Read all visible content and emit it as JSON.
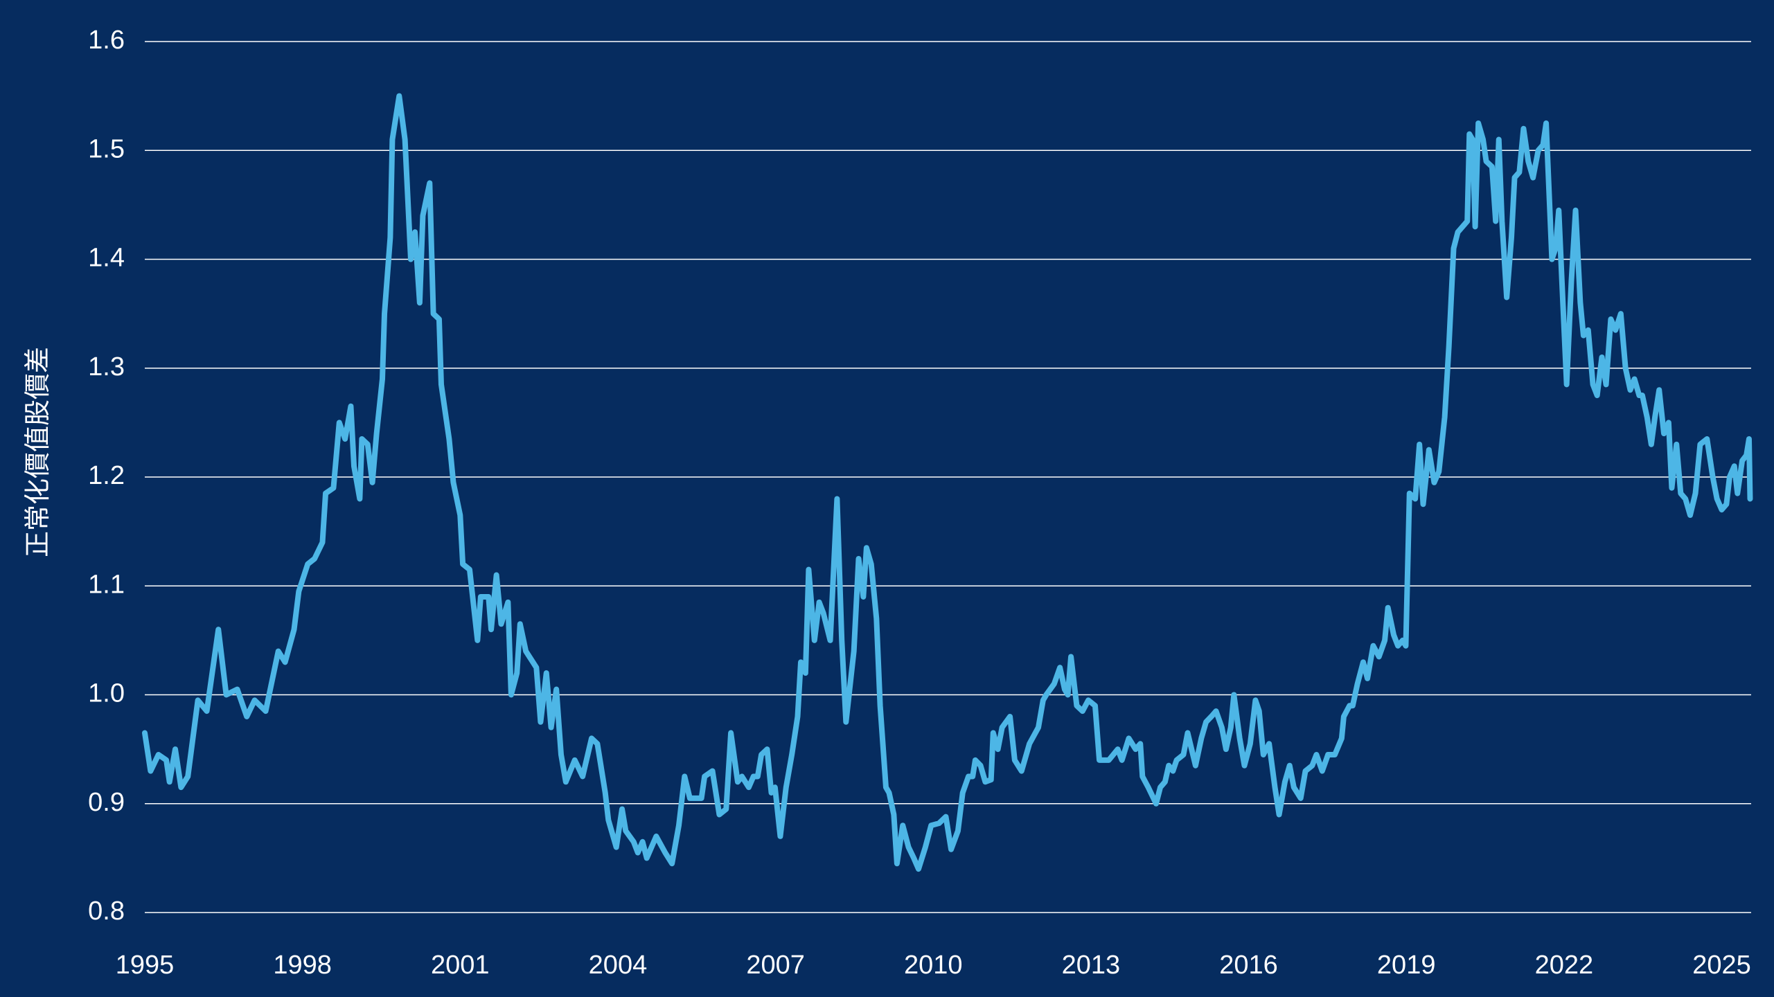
{
  "chart_data": {
    "type": "line",
    "y_label": "正常化價值股價差",
    "xlim": [
      1995,
      2025.56
    ],
    "xticks": [
      1995,
      1998,
      2001,
      2004,
      2007,
      2010,
      2013,
      2016,
      2019,
      2022,
      2025
    ],
    "ylim": [
      0.8,
      1.6
    ],
    "yticks": [
      0.8,
      0.9,
      {
        "value": 1,
        "label": "1.0"
      },
      1.1,
      1.2,
      1.3,
      1.4,
      1.5,
      1.6
    ],
    "grid": true,
    "series": [
      {
        "color": "#4db6e6",
        "x": [
          1995.0,
          1995.11,
          1995.26,
          1995.41,
          1995.47,
          1995.58,
          1995.69,
          1995.82,
          1996.01,
          1996.18,
          1996.4,
          1996.55,
          1996.76,
          1996.94,
          1997.09,
          1997.3,
          1997.54,
          1997.67,
          1997.84,
          1997.93,
          1998.1,
          1998.23,
          1998.38,
          1998.44,
          1998.59,
          1998.7,
          1998.81,
          1998.92,
          1998.98,
          1999.09,
          1999.13,
          1999.24,
          1999.33,
          1999.41,
          1999.52,
          1999.56,
          1999.67,
          1999.71,
          1999.84,
          1999.95,
          2000.06,
          2000.14,
          2000.23,
          2000.29,
          2000.42,
          2000.49,
          2000.6,
          2000.64,
          2000.79,
          2000.87,
          2001.0,
          2001.05,
          2001.18,
          2001.33,
          2001.39,
          2001.54,
          2001.59,
          2001.69,
          2001.78,
          2001.91,
          2001.97,
          2002.08,
          2002.14,
          2002.25,
          2002.45,
          2002.53,
          2002.64,
          2002.73,
          2002.83,
          2002.92,
          2003.01,
          2003.18,
          2003.33,
          2003.5,
          2003.61,
          2003.76,
          2003.82,
          2003.97,
          2004.08,
          2004.15,
          2004.3,
          2004.38,
          2004.47,
          2004.55,
          2004.73,
          2004.9,
          2005.03,
          2005.16,
          2005.27,
          2005.37,
          2005.59,
          2005.65,
          2005.8,
          2005.93,
          2006.06,
          2006.15,
          2006.28,
          2006.36,
          2006.49,
          2006.58,
          2006.66,
          2006.73,
          2006.84,
          2006.92,
          2006.99,
          2007.09,
          2007.2,
          2007.31,
          2007.42,
          2007.48,
          2007.57,
          2007.63,
          2007.74,
          2007.83,
          2007.91,
          2008.04,
          2008.17,
          2008.26,
          2008.34,
          2008.49,
          2008.58,
          2008.67,
          2008.73,
          2008.82,
          2008.92,
          2008.99,
          2009.1,
          2009.16,
          2009.25,
          2009.31,
          2009.42,
          2009.53,
          2009.63,
          2009.72,
          2009.85,
          2009.96,
          2010.11,
          2010.24,
          2010.34,
          2010.47,
          2010.56,
          2010.67,
          2010.75,
          2010.8,
          2010.9,
          2010.99,
          2011.1,
          2011.14,
          2011.23,
          2011.31,
          2011.46,
          2011.55,
          2011.68,
          2011.83,
          2012.0,
          2012.09,
          2012.15,
          2012.3,
          2012.41,
          2012.5,
          2012.56,
          2012.62,
          2012.73,
          2012.84,
          2012.95,
          2013.08,
          2013.16,
          2013.34,
          2013.51,
          2013.59,
          2013.72,
          2013.85,
          2013.94,
          2013.98,
          2014.09,
          2014.24,
          2014.32,
          2014.41,
          2014.48,
          2014.56,
          2014.63,
          2014.76,
          2014.84,
          2014.99,
          2015.1,
          2015.19,
          2015.29,
          2015.38,
          2015.49,
          2015.57,
          2015.66,
          2015.72,
          2015.83,
          2015.92,
          2016.03,
          2016.13,
          2016.2,
          2016.28,
          2016.39,
          2016.5,
          2016.58,
          2016.69,
          2016.78,
          2016.86,
          2016.99,
          2017.08,
          2017.21,
          2017.29,
          2017.4,
          2017.51,
          2017.64,
          2017.77,
          2017.81,
          2017.92,
          2017.98,
          2018.07,
          2018.18,
          2018.26,
          2018.37,
          2018.48,
          2018.59,
          2018.65,
          2018.76,
          2018.84,
          2018.93,
          2018.99,
          2019.06,
          2019.17,
          2019.25,
          2019.32,
          2019.43,
          2019.53,
          2019.62,
          2019.73,
          2019.81,
          2019.9,
          2019.98,
          2020.07,
          2020.16,
          2020.2,
          2020.26,
          2020.31,
          2020.37,
          2020.46,
          2020.52,
          2020.63,
          2020.7,
          2020.76,
          2020.82,
          2020.91,
          2021.0,
          2021.06,
          2021.15,
          2021.23,
          2021.32,
          2021.41,
          2021.51,
          2021.6,
          2021.66,
          2021.77,
          2021.84,
          2021.9,
          2021.96,
          2022.05,
          2022.14,
          2022.22,
          2022.31,
          2022.37,
          2022.46,
          2022.55,
          2022.63,
          2022.72,
          2022.8,
          2022.89,
          2022.98,
          2023.08,
          2023.17,
          2023.26,
          2023.34,
          2023.43,
          2023.49,
          2023.58,
          2023.66,
          2023.73,
          2023.81,
          2023.9,
          2023.99,
          2024.05,
          2024.14,
          2024.22,
          2024.31,
          2024.4,
          2024.5,
          2024.59,
          2024.72,
          2024.83,
          2024.91,
          2025.0,
          2025.09,
          2025.15,
          2025.24,
          2025.3,
          2025.39,
          2025.47,
          2025.52,
          2025.54
        ],
        "values": [
          0.965,
          0.93,
          0.945,
          0.94,
          0.92,
          0.95,
          0.915,
          0.925,
          0.995,
          0.985,
          1.06,
          1.0,
          1.005,
          0.98,
          0.995,
          0.985,
          1.04,
          1.03,
          1.06,
          1.095,
          1.12,
          1.125,
          1.14,
          1.185,
          1.19,
          1.25,
          1.235,
          1.265,
          1.21,
          1.18,
          1.235,
          1.23,
          1.195,
          1.24,
          1.29,
          1.35,
          1.42,
          1.51,
          1.55,
          1.51,
          1.4,
          1.425,
          1.36,
          1.44,
          1.47,
          1.35,
          1.345,
          1.285,
          1.235,
          1.195,
          1.165,
          1.12,
          1.115,
          1.05,
          1.09,
          1.09,
          1.06,
          1.11,
          1.065,
          1.085,
          1.0,
          1.02,
          1.065,
          1.04,
          1.025,
          0.975,
          1.02,
          0.97,
          1.005,
          0.945,
          0.92,
          0.94,
          0.925,
          0.96,
          0.955,
          0.91,
          0.885,
          0.86,
          0.895,
          0.875,
          0.865,
          0.855,
          0.865,
          0.85,
          0.87,
          0.855,
          0.845,
          0.88,
          0.925,
          0.905,
          0.905,
          0.925,
          0.93,
          0.89,
          0.895,
          0.965,
          0.92,
          0.925,
          0.915,
          0.925,
          0.925,
          0.945,
          0.95,
          0.91,
          0.915,
          0.87,
          0.915,
          0.945,
          0.98,
          1.03,
          1.02,
          1.115,
          1.05,
          1.085,
          1.075,
          1.05,
          1.18,
          1.05,
          0.975,
          1.04,
          1.125,
          1.09,
          1.135,
          1.12,
          1.07,
          0.99,
          0.915,
          0.91,
          0.89,
          0.845,
          0.88,
          0.86,
          0.85,
          0.84,
          0.86,
          0.88,
          0.882,
          0.888,
          0.858,
          0.875,
          0.91,
          0.925,
          0.925,
          0.94,
          0.935,
          0.92,
          0.922,
          0.965,
          0.95,
          0.97,
          0.98,
          0.94,
          0.93,
          0.955,
          0.97,
          0.995,
          1.0,
          1.01,
          1.025,
          1.005,
          1.0,
          1.035,
          0.99,
          0.985,
          0.995,
          0.99,
          0.94,
          0.94,
          0.95,
          0.94,
          0.96,
          0.95,
          0.955,
          0.925,
          0.915,
          0.9,
          0.915,
          0.92,
          0.935,
          0.93,
          0.94,
          0.945,
          0.965,
          0.935,
          0.96,
          0.975,
          0.98,
          0.985,
          0.97,
          0.95,
          0.97,
          1.0,
          0.96,
          0.935,
          0.955,
          0.995,
          0.985,
          0.945,
          0.955,
          0.915,
          0.89,
          0.92,
          0.935,
          0.915,
          0.905,
          0.93,
          0.935,
          0.945,
          0.93,
          0.945,
          0.945,
          0.96,
          0.98,
          0.99,
          0.99,
          1.01,
          1.03,
          1.015,
          1.045,
          1.035,
          1.05,
          1.08,
          1.055,
          1.045,
          1.05,
          1.045,
          1.185,
          1.18,
          1.23,
          1.175,
          1.225,
          1.195,
          1.205,
          1.255,
          1.32,
          1.41,
          1.425,
          1.43,
          1.435,
          1.515,
          1.51,
          1.43,
          1.525,
          1.51,
          1.49,
          1.485,
          1.435,
          1.51,
          1.435,
          1.365,
          1.42,
          1.475,
          1.48,
          1.52,
          1.49,
          1.475,
          1.5,
          1.505,
          1.525,
          1.4,
          1.41,
          1.445,
          1.38,
          1.285,
          1.38,
          1.445,
          1.36,
          1.33,
          1.335,
          1.285,
          1.275,
          1.31,
          1.285,
          1.345,
          1.335,
          1.35,
          1.3,
          1.28,
          1.29,
          1.275,
          1.275,
          1.255,
          1.23,
          1.255,
          1.28,
          1.24,
          1.25,
          1.19,
          1.23,
          1.185,
          1.18,
          1.165,
          1.185,
          1.23,
          1.235,
          1.2,
          1.18,
          1.17,
          1.175,
          1.2,
          1.21,
          1.185,
          1.215,
          1.22,
          1.235,
          1.18
        ]
      }
    ]
  }
}
